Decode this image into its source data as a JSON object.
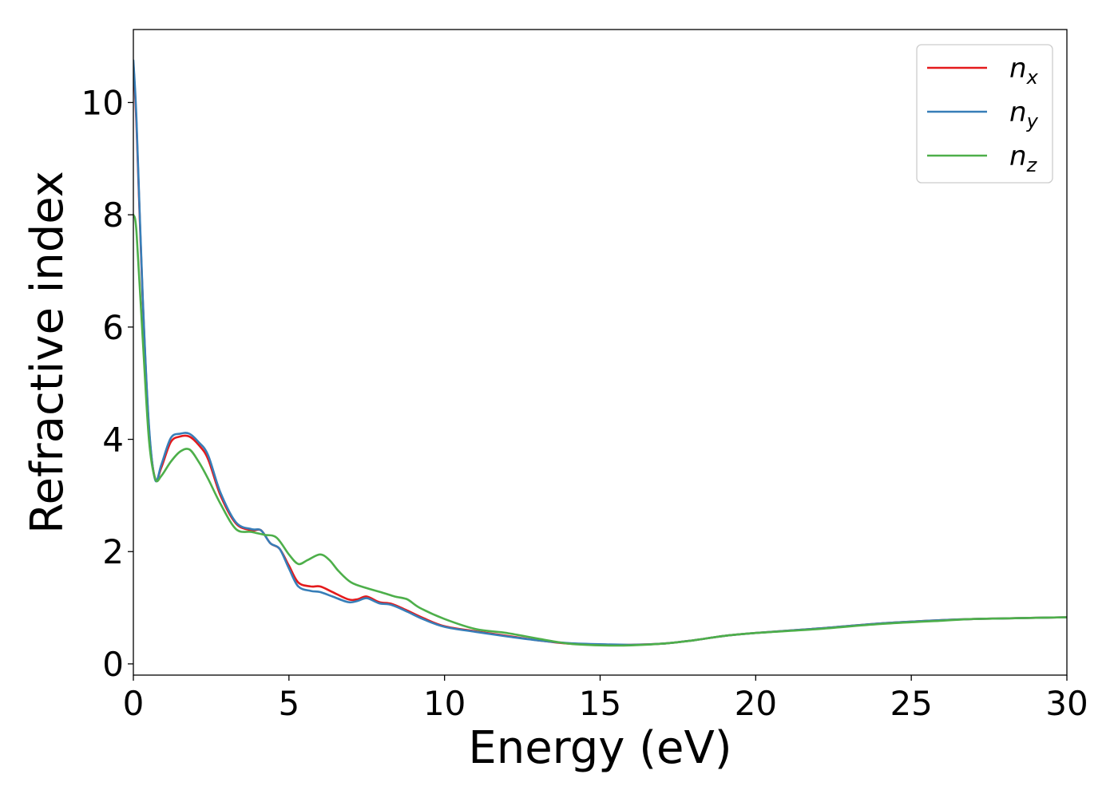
{
  "chart_data": {
    "type": "line",
    "title": "",
    "xlabel": "Energy (eV)",
    "ylabel": "Refractive index",
    "xlim": [
      0,
      30
    ],
    "ylim": [
      -0.2,
      11.3
    ],
    "xticks": [
      0,
      5,
      10,
      15,
      20,
      25,
      30
    ],
    "yticks": [
      0,
      2,
      4,
      6,
      8,
      10
    ],
    "grid": false,
    "legend_position": "top-right",
    "series": [
      {
        "name": "n",
        "subscript": "x",
        "color": "#e41a1c",
        "x": [
          0,
          0.1,
          0.3,
          0.5,
          0.7,
          0.9,
          1.2,
          1.5,
          1.8,
          2.1,
          2.4,
          2.8,
          3.3,
          3.8,
          4.1,
          4.4,
          4.7,
          5.0,
          5.3,
          5.7,
          6.0,
          6.4,
          6.9,
          7.2,
          7.5,
          7.9,
          8.3,
          8.8,
          9.3,
          10.0,
          11.0,
          12.0,
          13.0,
          14.0,
          15.0,
          16.0,
          17.0,
          18.0,
          19.0,
          20.0,
          22.0,
          24.0,
          26.0,
          27.0,
          28.0,
          29.0,
          30.0
        ],
        "y": [
          10.7,
          9.6,
          6.5,
          4.2,
          3.3,
          3.5,
          3.95,
          4.05,
          4.05,
          3.9,
          3.65,
          3.0,
          2.5,
          2.38,
          2.38,
          2.15,
          2.05,
          1.75,
          1.45,
          1.38,
          1.38,
          1.28,
          1.15,
          1.15,
          1.2,
          1.1,
          1.07,
          0.95,
          0.82,
          0.67,
          0.58,
          0.5,
          0.42,
          0.36,
          0.34,
          0.34,
          0.36,
          0.42,
          0.5,
          0.55,
          0.63,
          0.72,
          0.78,
          0.8,
          0.81,
          0.82,
          0.83
        ]
      },
      {
        "name": "n",
        "subscript": "y",
        "color": "#377eb8",
        "x": [
          0,
          0.1,
          0.3,
          0.5,
          0.7,
          0.9,
          1.2,
          1.5,
          1.8,
          2.1,
          2.4,
          2.8,
          3.3,
          3.8,
          4.1,
          4.4,
          4.7,
          5.0,
          5.3,
          5.7,
          6.0,
          6.4,
          6.9,
          7.2,
          7.5,
          7.9,
          8.3,
          8.8,
          9.3,
          10.0,
          11.0,
          12.0,
          13.0,
          14.0,
          15.0,
          16.0,
          17.0,
          18.0,
          19.0,
          20.0,
          22.0,
          24.0,
          26.0,
          27.0,
          28.0,
          29.0,
          30.0
        ],
        "y": [
          10.75,
          9.7,
          6.55,
          4.25,
          3.28,
          3.55,
          4.02,
          4.1,
          4.1,
          3.95,
          3.72,
          3.05,
          2.52,
          2.4,
          2.38,
          2.15,
          2.05,
          1.7,
          1.38,
          1.3,
          1.28,
          1.2,
          1.1,
          1.12,
          1.17,
          1.08,
          1.05,
          0.93,
          0.8,
          0.66,
          0.57,
          0.49,
          0.42,
          0.37,
          0.35,
          0.34,
          0.36,
          0.42,
          0.5,
          0.55,
          0.63,
          0.72,
          0.78,
          0.8,
          0.81,
          0.82,
          0.83
        ]
      },
      {
        "name": "n",
        "subscript": "z",
        "color": "#4daf4a",
        "x": [
          0,
          0.1,
          0.3,
          0.5,
          0.7,
          0.9,
          1.2,
          1.5,
          1.8,
          2.1,
          2.4,
          2.8,
          3.3,
          3.8,
          4.2,
          4.6,
          5.0,
          5.3,
          5.6,
          6.0,
          6.3,
          6.6,
          7.0,
          7.5,
          8.0,
          8.4,
          8.8,
          9.2,
          10.0,
          11.0,
          12.0,
          13.0,
          14.0,
          15.0,
          16.0,
          17.0,
          18.0,
          19.0,
          20.0,
          22.0,
          24.0,
          26.0,
          27.0,
          28.0,
          29.0,
          30.0
        ],
        "y": [
          8.0,
          7.7,
          5.8,
          4.0,
          3.3,
          3.35,
          3.6,
          3.78,
          3.82,
          3.6,
          3.3,
          2.85,
          2.4,
          2.35,
          2.3,
          2.25,
          1.95,
          1.78,
          1.85,
          1.95,
          1.85,
          1.65,
          1.45,
          1.35,
          1.27,
          1.2,
          1.15,
          1.0,
          0.8,
          0.62,
          0.55,
          0.45,
          0.36,
          0.33,
          0.33,
          0.36,
          0.42,
          0.5,
          0.55,
          0.62,
          0.71,
          0.77,
          0.8,
          0.81,
          0.82,
          0.83
        ]
      }
    ]
  }
}
